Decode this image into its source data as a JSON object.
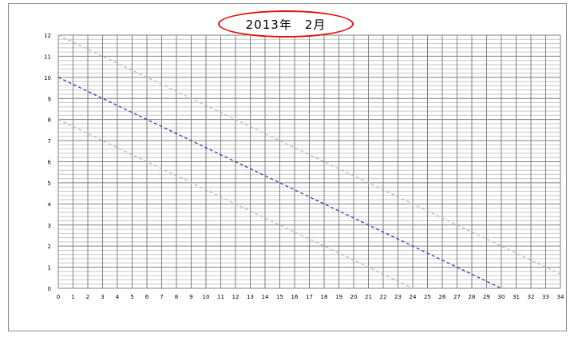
{
  "chart_data": {
    "type": "line",
    "title": "2013年　2月",
    "xlim": [
      0,
      34
    ],
    "ylim": [
      0,
      12
    ],
    "x_ticks": [
      0,
      1,
      2,
      3,
      4,
      5,
      6,
      7,
      8,
      9,
      10,
      11,
      12,
      13,
      14,
      15,
      16,
      17,
      18,
      19,
      20,
      21,
      22,
      23,
      24,
      25,
      26,
      27,
      28,
      29,
      30,
      31,
      32,
      33,
      34
    ],
    "y_ticks": [
      0,
      1,
      2,
      3,
      4,
      5,
      6,
      7,
      8,
      9,
      10,
      11,
      12
    ],
    "y_minor_step": 0.2,
    "grid": true,
    "legend": "none",
    "series": [
      {
        "color": "#b8b8b8",
        "dash": true,
        "points": [
          [
            0,
            12
          ],
          [
            34,
            0.667
          ]
        ]
      },
      {
        "color": "#2a3fb0",
        "dash": true,
        "points": [
          [
            0,
            10
          ],
          [
            30,
            0
          ]
        ]
      },
      {
        "color": "#b8b8b8",
        "dash": true,
        "points": [
          [
            0,
            8
          ],
          [
            24,
            0
          ]
        ]
      }
    ]
  },
  "colors": {
    "title_ellipse": "#e01010",
    "major_grid": "#808080",
    "minor_grid": "#c8c8c8"
  }
}
